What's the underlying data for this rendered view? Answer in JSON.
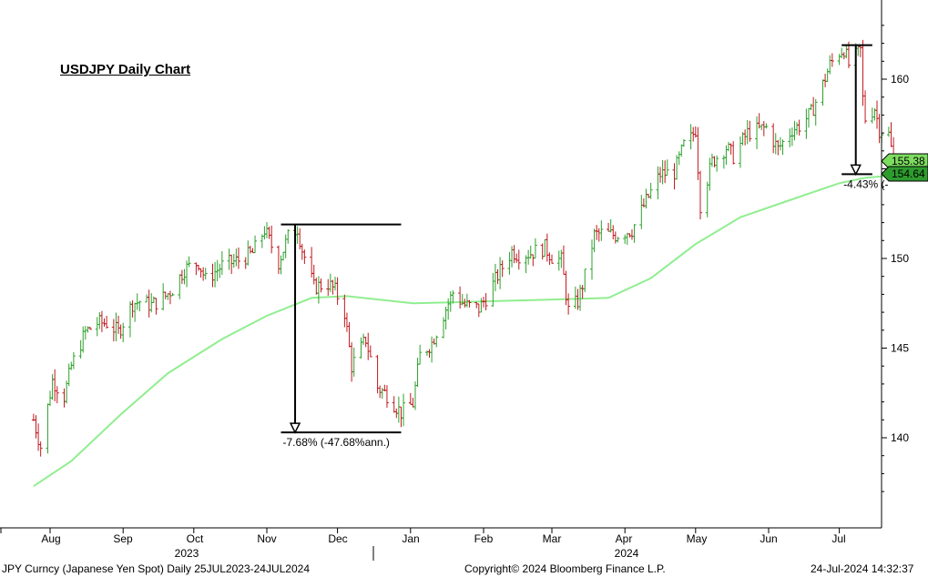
{
  "title": "USDJPY Daily Chart",
  "footer": {
    "left": "JPY Curncy (Japanese Yen Spot)  Daily 25JUL2023-24JUL2024",
    "center": "Copyright© 2024 Bloomberg Finance L.P.",
    "right": "24-Jul-2024 14:32:37"
  },
  "colors": {
    "up_bar": "#2ca02c",
    "down_bar": "#c0181e",
    "moving_average": "#90ee90",
    "last_price_badge": "#7ddc5f",
    "ma_badge": "#2e9b2e",
    "annotation": "#000000"
  },
  "chart_data": {
    "type": "ohlc",
    "ylim": [
      135.5,
      165
    ],
    "y_ticks": [
      "140",
      "145",
      "150",
      "155",
      "160"
    ],
    "month_labels": [
      "Aug",
      "Sep",
      "Oct",
      "Nov",
      "Dec",
      "Jan",
      "Feb",
      "Mar",
      "Apr",
      "May",
      "Jun",
      "Jul"
    ],
    "year_labels": [
      "2023",
      "2024"
    ],
    "last_price": "155.38",
    "moving_average_last": "154.64",
    "moving_average_points": [
      [
        "2023-07-25",
        137.3
      ],
      [
        "2023-08-10",
        138.7
      ],
      [
        "2023-08-31",
        141.3
      ],
      [
        "2023-09-20",
        143.6
      ],
      [
        "2023-10-13",
        145.5
      ],
      [
        "2023-11-01",
        146.8
      ],
      [
        "2023-11-20",
        147.8
      ],
      [
        "2023-12-05",
        147.9
      ],
      [
        "2024-01-02",
        147.5
      ],
      [
        "2024-01-31",
        147.6
      ],
      [
        "2024-02-29",
        147.7
      ],
      [
        "2024-03-25",
        147.8
      ],
      [
        "2024-04-12",
        148.9
      ],
      [
        "2024-05-01",
        150.8
      ],
      [
        "2024-05-20",
        152.3
      ],
      [
        "2024-06-11",
        153.3
      ],
      [
        "2024-07-01",
        154.2
      ],
      [
        "2024-07-12",
        154.5
      ],
      [
        "2024-07-24",
        154.64
      ]
    ],
    "price_points": [
      [
        "2023-07-25",
        141.0
      ],
      [
        "2023-07-28",
        139.5
      ],
      [
        "2023-08-02",
        143.2
      ],
      [
        "2023-08-07",
        142.3
      ],
      [
        "2023-08-10",
        144.0
      ],
      [
        "2023-08-16",
        145.9
      ],
      [
        "2023-08-21",
        146.4
      ],
      [
        "2023-08-25",
        146.4
      ],
      [
        "2023-08-30",
        145.9
      ],
      [
        "2023-09-05",
        147.5
      ],
      [
        "2023-09-08",
        147.6
      ],
      [
        "2023-09-13",
        147.4
      ],
      [
        "2023-09-19",
        147.9
      ],
      [
        "2023-09-22",
        148.3
      ],
      [
        "2023-09-27",
        149.4
      ],
      [
        "2023-10-03",
        149.8
      ],
      [
        "2023-10-06",
        148.8
      ],
      [
        "2023-10-13",
        149.6
      ],
      [
        "2023-10-20",
        149.9
      ],
      [
        "2023-10-26",
        150.3
      ],
      [
        "2023-10-31",
        151.6
      ],
      [
        "2023-11-06",
        149.8
      ],
      [
        "2023-11-10",
        151.2
      ],
      [
        "2023-11-14",
        151.7
      ],
      [
        "2023-11-16",
        150.5
      ],
      [
        "2023-11-21",
        148.4
      ],
      [
        "2023-11-27",
        148.6
      ],
      [
        "2023-11-30",
        148.2
      ],
      [
        "2023-12-04",
        147.0
      ],
      [
        "2023-12-07",
        144.0
      ],
      [
        "2023-12-13",
        145.5
      ],
      [
        "2023-12-18",
        142.8
      ],
      [
        "2023-12-22",
        142.4
      ],
      [
        "2023-12-28",
        141.4
      ],
      [
        "2024-01-02",
        141.9
      ],
      [
        "2024-01-05",
        144.6
      ],
      [
        "2024-01-10",
        145.3
      ],
      [
        "2024-01-16",
        147.2
      ],
      [
        "2024-01-19",
        148.1
      ],
      [
        "2024-01-24",
        147.4
      ],
      [
        "2024-01-30",
        147.2
      ],
      [
        "2024-02-02",
        147.8
      ],
      [
        "2024-02-08",
        149.3
      ],
      [
        "2024-02-13",
        150.4
      ],
      [
        "2024-02-16",
        150.2
      ],
      [
        "2024-02-21",
        150.3
      ],
      [
        "2024-02-27",
        150.6
      ],
      [
        "2024-03-01",
        150.1
      ],
      [
        "2024-03-05",
        149.9
      ],
      [
        "2024-03-08",
        147.1
      ],
      [
        "2024-03-12",
        147.6
      ],
      [
        "2024-03-15",
        149.0
      ],
      [
        "2024-03-19",
        151.3
      ],
      [
        "2024-03-22",
        151.4
      ],
      [
        "2024-03-28",
        151.3
      ],
      [
        "2024-04-04",
        151.6
      ],
      [
        "2024-04-10",
        153.2
      ],
      [
        "2024-04-16",
        154.7
      ],
      [
        "2024-04-22",
        154.8
      ],
      [
        "2024-04-26",
        156.3
      ],
      [
        "2024-04-29",
        156.7
      ],
      [
        "2024-05-01",
        157.2
      ],
      [
        "2024-05-03",
        153.0
      ],
      [
        "2024-05-08",
        155.4
      ],
      [
        "2024-05-14",
        156.2
      ],
      [
        "2024-05-17",
        155.7
      ],
      [
        "2024-05-23",
        157.0
      ],
      [
        "2024-05-28",
        157.2
      ],
      [
        "2024-05-31",
        157.3
      ],
      [
        "2024-06-05",
        156.1
      ],
      [
        "2024-06-11",
        157.2
      ],
      [
        "2024-06-14",
        157.4
      ],
      [
        "2024-06-19",
        158.1
      ],
      [
        "2024-06-24",
        159.7
      ],
      [
        "2024-06-27",
        160.8
      ],
      [
        "2024-07-01",
        161.5
      ],
      [
        "2024-07-03",
        161.7
      ],
      [
        "2024-07-05",
        160.8
      ],
      [
        "2024-07-10",
        161.6
      ],
      [
        "2024-07-11",
        158.9
      ],
      [
        "2024-07-12",
        157.8
      ],
      [
        "2024-07-16",
        158.4
      ],
      [
        "2024-07-18",
        157.2
      ],
      [
        "2024-07-22",
        156.9
      ],
      [
        "2024-07-24",
        155.38
      ]
    ],
    "annotations": [
      {
        "label": "-7.68% (-47.68%ann.)",
        "from_date": "2023-11-13",
        "from_price": 151.9,
        "to_date": "2023-12-14",
        "to_price": 140.3,
        "line_start": "2023-11-07",
        "line_end": "2023-12-28"
      },
      {
        "label": "-4.43% (-",
        "from_date": "2024-07-08",
        "from_price": 161.9,
        "to_date": "2024-07-10",
        "to_price": 154.7,
        "line_start": "2024-07-02",
        "line_end": "2024-07-15"
      }
    ]
  }
}
